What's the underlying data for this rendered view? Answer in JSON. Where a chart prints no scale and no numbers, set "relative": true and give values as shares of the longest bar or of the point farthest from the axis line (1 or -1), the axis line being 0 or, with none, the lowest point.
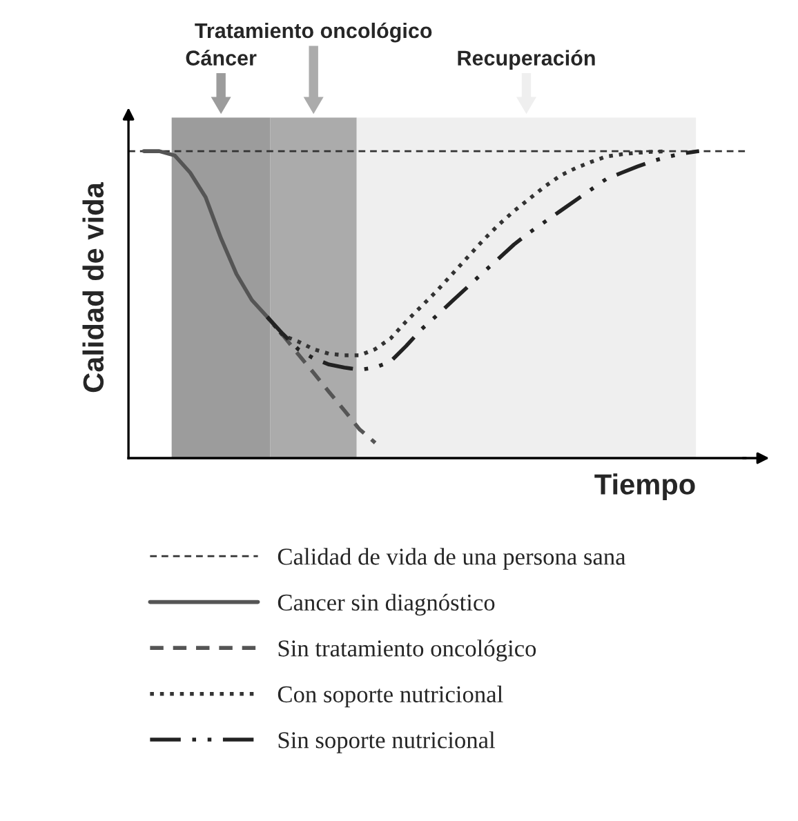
{
  "chart_data": {
    "type": "line",
    "relative": true,
    "xlabel": "Tiempo",
    "ylabel": "Calidad de vida",
    "legend": "bottom",
    "categories": [
      null,
      null,
      null,
      null,
      null,
      null,
      null,
      null,
      null,
      null,
      null,
      null,
      null,
      null,
      null,
      null,
      null,
      null,
      null,
      null,
      null,
      null,
      null,
      null,
      null,
      null,
      null,
      null,
      null,
      null,
      null,
      null,
      null,
      null,
      null,
      null,
      null,
      null,
      null,
      null,
      null
    ],
    "ref_lines": [
      {
        "axis": "y",
        "value": 1,
        "label": "Calidad de vida de una persona sana",
        "color": "#333333",
        "line_style": "dashed"
      }
    ],
    "annotations": [
      "Cáncer",
      "Tratamiento oncológico",
      "Recuperación"
    ],
    "series": [
      {
        "name": "Cancer sin diagnóstico",
        "color": "#555555",
        "line_style": "solid",
        "values": [
          null,
          1.0,
          1.0,
          0.986,
          0.93,
          0.85,
          0.716,
          0.6,
          0.515,
          0.46,
          null,
          null,
          null,
          null,
          null,
          null,
          null,
          null,
          null,
          null,
          null,
          null,
          null,
          null,
          null,
          null,
          null,
          null,
          null,
          null,
          null,
          null,
          null,
          null,
          null,
          null,
          null,
          null,
          null,
          null,
          null
        ]
      },
      {
        "name": "Sin tratamiento oncológico",
        "color": "#555555",
        "line_style": "dashed",
        "values": [
          null,
          null,
          null,
          null,
          null,
          null,
          null,
          null,
          null,
          0.46,
          0.401,
          0.339,
          0.278,
          0.216,
          0.155,
          0.093,
          0.05,
          null,
          null,
          null,
          null,
          null,
          null,
          null,
          null,
          null,
          null,
          null,
          null,
          null,
          null,
          null,
          null,
          null,
          null,
          null,
          null,
          null,
          null,
          null,
          null
        ]
      },
      {
        "name": "Con soporte nutricional",
        "color": "#333333",
        "line_style": "dotted",
        "values": [
          null,
          null,
          null,
          null,
          null,
          null,
          null,
          null,
          null,
          0.46,
          0.4,
          0.38,
          0.355,
          0.34,
          0.335,
          0.335,
          0.355,
          0.39,
          0.445,
          0.495,
          0.545,
          0.6,
          0.655,
          0.71,
          0.76,
          0.805,
          0.845,
          0.885,
          0.92,
          0.945,
          0.965,
          0.983,
          0.99,
          0.995,
          0.998,
          1.0,
          null,
          null,
          null,
          null,
          null
        ]
      },
      {
        "name": "Sin soporte nutricional",
        "color": "#222222",
        "line_style": "dashdot",
        "values": [
          null,
          null,
          null,
          null,
          null,
          null,
          null,
          null,
          null,
          0.46,
          0.405,
          0.355,
          0.325,
          0.305,
          0.295,
          0.288,
          0.295,
          0.315,
          0.365,
          0.42,
          0.465,
          0.512,
          0.558,
          0.605,
          0.65,
          0.696,
          0.735,
          0.77,
          0.805,
          0.84,
          0.875,
          0.91,
          0.93,
          0.95,
          0.968,
          0.982,
          0.993,
          1.0,
          null,
          null,
          null
        ]
      }
    ]
  }
}
